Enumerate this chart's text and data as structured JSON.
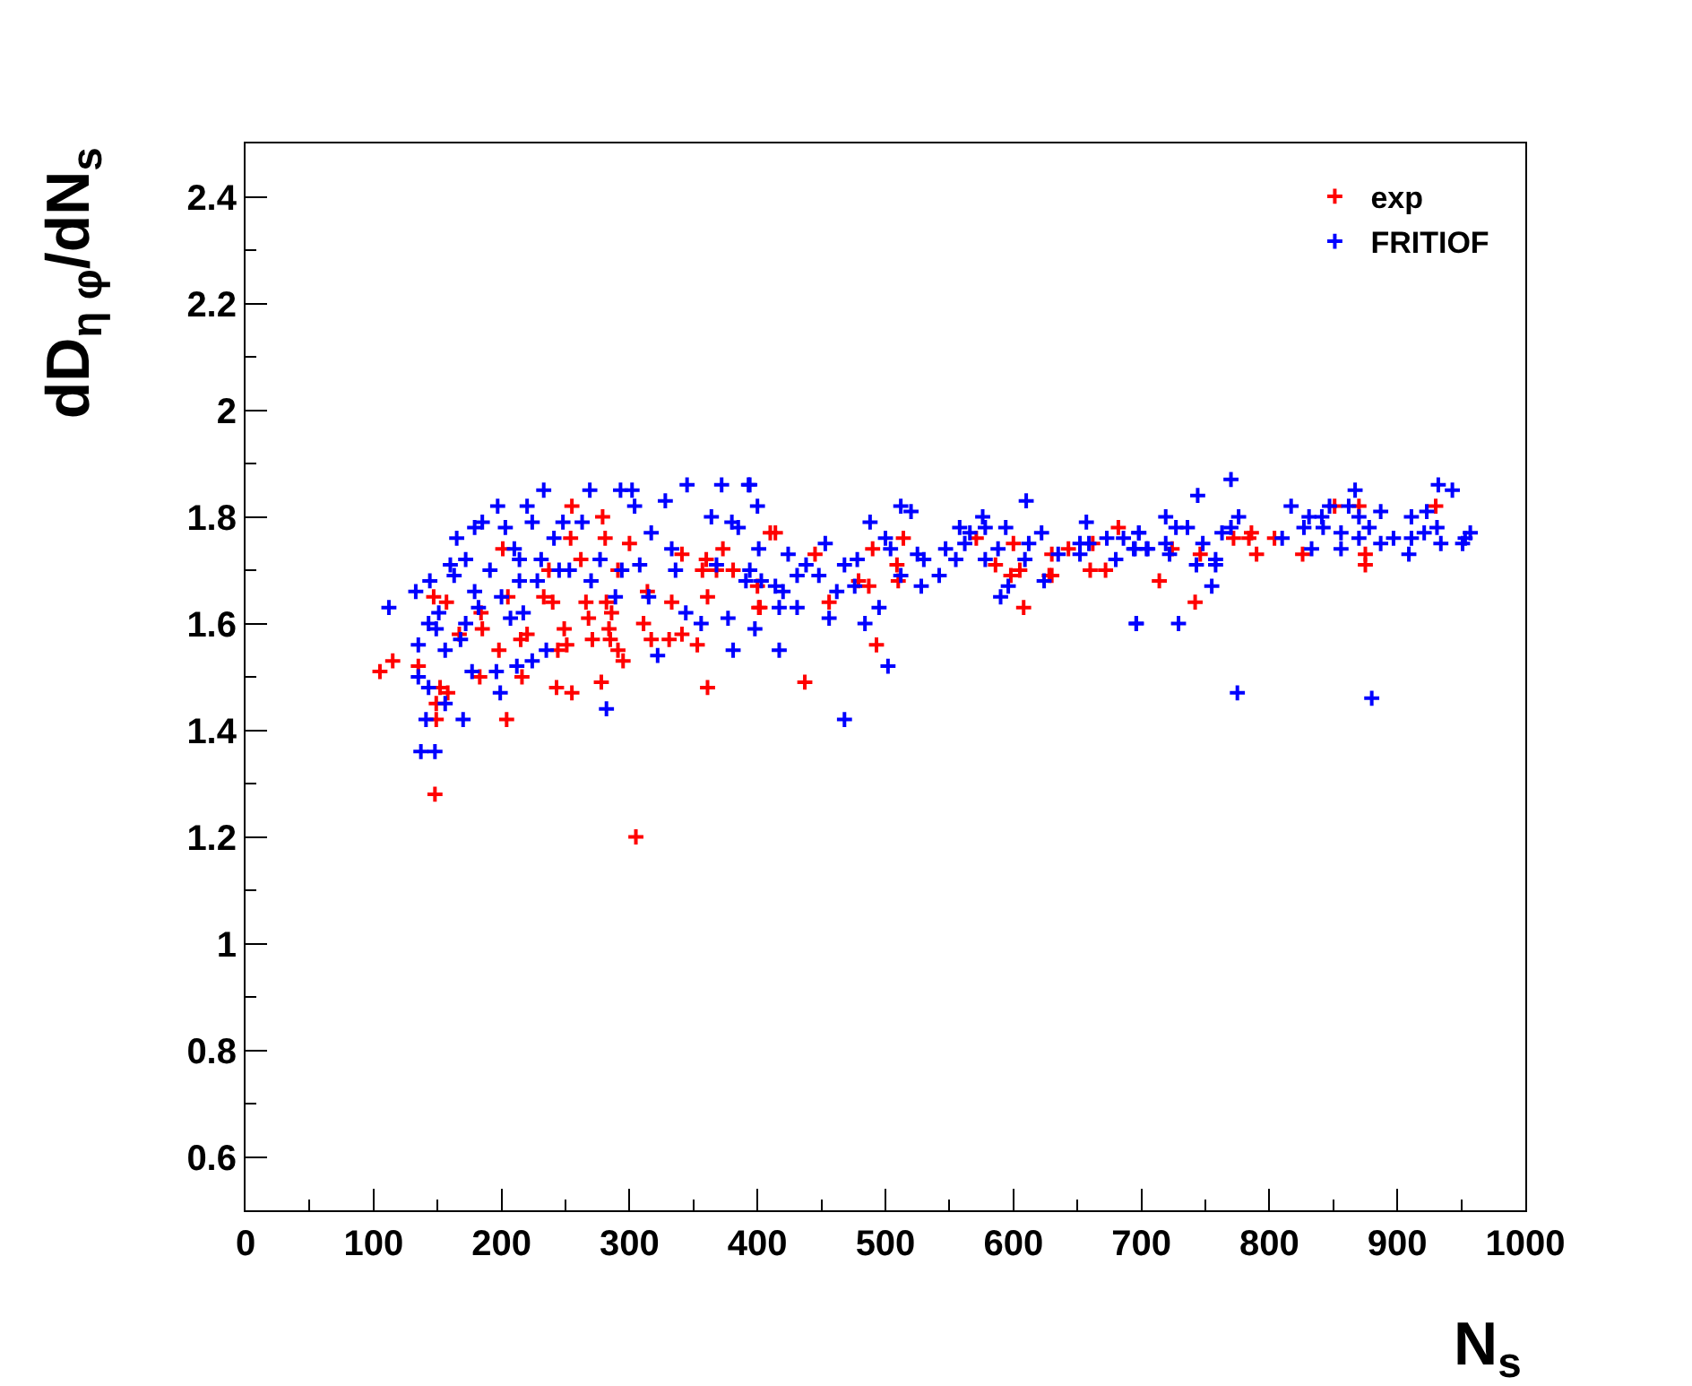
{
  "chart_data": {
    "type": "scatter",
    "xlabel": "N$_{s}$",
    "ylabel": "dD$_{η φ}$/dN$_{s}$",
    "xlim": [
      0,
      1000
    ],
    "xticks": [
      0,
      100,
      200,
      300,
      400,
      500,
      600,
      700,
      800,
      900,
      1000
    ],
    "ylim": [
      0.5,
      2.5
    ],
    "yticks": [
      0.6,
      0.8,
      1,
      1.2,
      1.4,
      1.6,
      1.8,
      2,
      2.2,
      2.4
    ],
    "legend": "top right",
    "marker": "cross",
    "series": [
      {
        "name": "exp",
        "color": "#ff0000",
        "x": [
          105,
          115,
          135,
          152,
          149,
          158,
          149,
          157,
          147,
          184,
          185,
          183,
          167,
          198,
          204,
          201,
          205,
          215,
          216,
          220,
          233,
          237,
          240,
          244,
          249,
          251,
          243,
          255,
          255,
          254,
          262,
          266,
          268,
          271,
          279,
          281,
          282,
          284,
          285,
          286,
          291,
          291,
          295,
          278,
          300,
          311,
          314,
          317,
          331,
          333,
          341,
          341,
          353,
          357,
          361,
          360,
          361,
          368,
          373,
          381,
          148,
          305,
          400,
          401,
          402,
          410,
          414,
          437,
          445,
          456,
          479,
          487,
          490,
          493,
          509,
          510,
          514,
          571,
          586,
          598,
          605,
          600,
          608,
          628,
          630,
          630,
          643,
          660,
          662,
          672,
          682,
          724,
          714,
          742,
          746,
          772,
          784,
          786,
          790,
          804,
          826,
          851,
          870,
          875,
          875,
          930
        ],
        "values": [
          1.51,
          1.53,
          1.52,
          1.48,
          1.45,
          1.47,
          1.42,
          1.64,
          1.65,
          1.62,
          1.59,
          1.5,
          1.58,
          1.55,
          1.42,
          1.74,
          1.65,
          1.57,
          1.5,
          1.58,
          1.65,
          1.7,
          1.64,
          1.55,
          1.59,
          1.56,
          1.48,
          1.47,
          1.82,
          1.76,
          1.72,
          1.64,
          1.61,
          1.57,
          1.8,
          1.76,
          1.64,
          1.59,
          1.57,
          1.62,
          1.7,
          1.55,
          1.53,
          1.49,
          1.75,
          1.6,
          1.66,
          1.57,
          1.57,
          1.64,
          1.73,
          1.58,
          1.56,
          1.7,
          1.48,
          1.72,
          1.65,
          1.7,
          1.74,
          1.7,
          1.28,
          1.2,
          1.67,
          1.63,
          1.63,
          1.77,
          1.77,
          1.49,
          1.73,
          1.64,
          1.68,
          1.67,
          1.74,
          1.56,
          1.71,
          1.68,
          1.76,
          1.76,
          1.71,
          1.69,
          1.7,
          1.75,
          1.63,
          1.69,
          1.69,
          1.73,
          1.74,
          1.7,
          1.75,
          1.7,
          1.78,
          1.74,
          1.68,
          1.64,
          1.73,
          1.76,
          1.76,
          1.77,
          1.73,
          1.76,
          1.73,
          1.82,
          1.82,
          1.73,
          1.71,
          1.82
        ]
      },
      {
        "name": "FRITIOF",
        "color": "#0000ff",
        "x": [
          112,
          133,
          137,
          148,
          141,
          143,
          135,
          135,
          143,
          144,
          151,
          156,
          160,
          165,
          170,
          172,
          179,
          185,
          179,
          177,
          196,
          197,
          199,
          203,
          210,
          214,
          212,
          220,
          224,
          224,
          233,
          231,
          235,
          241,
          245,
          248,
          253,
          263,
          269,
          270,
          277,
          282,
          289,
          293,
          302,
          294,
          304,
          308,
          317,
          315,
          322,
          328,
          333,
          336,
          345,
          344,
          356,
          364,
          372,
          368,
          377,
          380,
          381,
          393,
          394,
          163,
          172,
          182,
          191,
          200,
          207,
          214,
          217,
          228,
          156,
          168,
          149,
          394,
          400,
          385,
          401,
          391,
          403,
          398,
          414,
          420,
          417,
          417,
          424,
          431,
          431,
          438,
          448,
          453,
          456,
          462,
          468,
          468,
          476,
          478,
          484,
          488,
          495,
          500,
          502,
          504,
          512,
          512,
          520,
          525,
          528,
          530,
          542,
          547,
          558,
          555,
          562,
          566,
          576,
          578,
          578,
          588,
          590,
          594,
          596,
          610,
          609,
          612,
          622,
          624,
          635,
          652,
          652,
          657,
          659,
          673,
          680,
          686,
          694,
          698,
          696,
          704,
          698,
          695,
          705,
          696,
          719,
          719,
          722,
          727,
          729,
          736,
          743,
          744,
          748,
          755,
          758,
          758,
          763,
          770,
          770,
          776,
          775,
          810,
          817,
          827,
          831,
          833,
          841,
          842,
          847,
          856,
          856,
          862,
          867,
          870,
          870,
          878,
          880,
          887,
          887,
          897,
          909,
          911,
          911,
          921,
          923,
          931,
          932,
          934,
          943,
          951,
          953,
          957
        ],
        "values": [
          1.63,
          1.66,
          1.36,
          1.36,
          1.42,
          1.48,
          1.5,
          1.56,
          1.6,
          1.68,
          1.62,
          1.45,
          1.71,
          1.76,
          1.42,
          1.72,
          1.78,
          1.79,
          1.66,
          1.51,
          1.51,
          1.82,
          1.47,
          1.78,
          1.74,
          1.68,
          1.52,
          1.82,
          1.79,
          1.53,
          1.85,
          1.72,
          1.55,
          1.76,
          1.7,
          1.79,
          1.7,
          1.79,
          1.85,
          1.68,
          1.72,
          1.44,
          1.65,
          1.85,
          1.85,
          1.7,
          1.82,
          1.71,
          1.77,
          1.65,
          1.54,
          1.83,
          1.74,
          1.7,
          1.86,
          1.62,
          1.6,
          1.8,
          1.86,
          1.71,
          1.61,
          1.79,
          1.55,
          1.86,
          1.7,
          1.69,
          1.6,
          1.63,
          1.7,
          1.65,
          1.61,
          1.72,
          1.62,
          1.68,
          1.55,
          1.57,
          1.59,
          1.86,
          1.82,
          1.78,
          1.74,
          1.68,
          1.68,
          1.59,
          1.67,
          1.66,
          1.63,
          1.55,
          1.73,
          1.69,
          1.63,
          1.71,
          1.69,
          1.75,
          1.61,
          1.66,
          1.42,
          1.71,
          1.67,
          1.72,
          1.6,
          1.79,
          1.63,
          1.76,
          1.52,
          1.74,
          1.82,
          1.69,
          1.81,
          1.73,
          1.67,
          1.72,
          1.69,
          1.74,
          1.78,
          1.72,
          1.75,
          1.77,
          1.8,
          1.78,
          1.72,
          1.74,
          1.65,
          1.78,
          1.67,
          1.83,
          1.72,
          1.75,
          1.77,
          1.68,
          1.73,
          1.75,
          1.73,
          1.79,
          1.75,
          1.76,
          1.72,
          1.76,
          1.74,
          1.77,
          1.6,
          1.74,
          1.77,
          1.74,
          1.74,
          1.6,
          1.8,
          1.75,
          1.73,
          1.78,
          1.6,
          1.78,
          1.71,
          1.84,
          1.75,
          1.67,
          1.72,
          1.71,
          1.77,
          1.87,
          1.78,
          1.8,
          1.47,
          1.76,
          1.82,
          1.78,
          1.8,
          1.74,
          1.8,
          1.78,
          1.82,
          1.77,
          1.74,
          1.82,
          1.85,
          1.76,
          1.8,
          1.78,
          1.46,
          1.81,
          1.75,
          1.76,
          1.73,
          1.8,
          1.76,
          1.77,
          1.81,
          1.78,
          1.86,
          1.75,
          1.85,
          1.75,
          1.76,
          1.77
        ]
      }
    ]
  }
}
